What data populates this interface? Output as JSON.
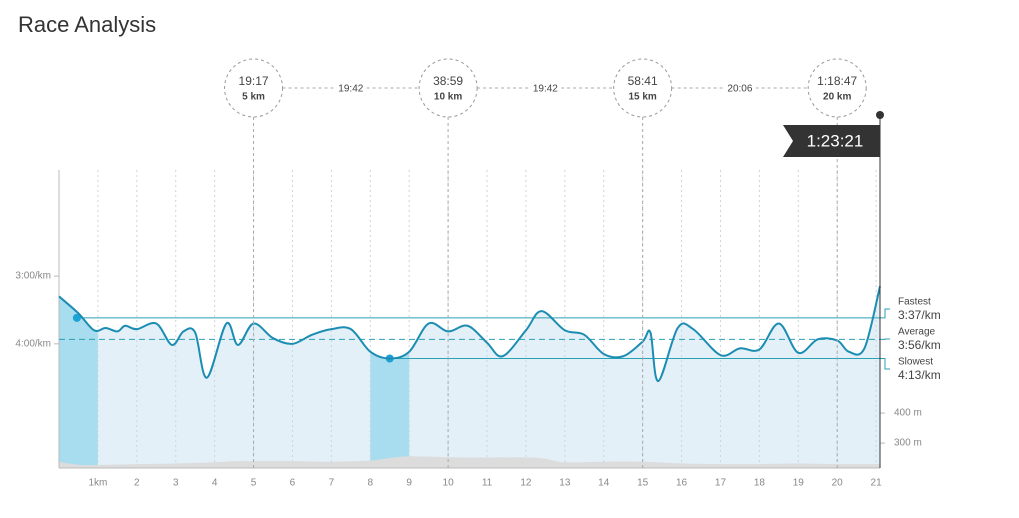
{
  "chart_data": {
    "type": "line",
    "title": "Race Analysis",
    "xlim": [
      0,
      21.1
    ],
    "xticks": [
      {
        "value": 1,
        "label": "1km"
      },
      2,
      3,
      4,
      5,
      6,
      7,
      8,
      9,
      10,
      11,
      12,
      13,
      14,
      15,
      16,
      17,
      18,
      19,
      20,
      21
    ],
    "ylim": [
      350,
      86
    ],
    "yticks": [
      {
        "value": 180,
        "label": "3:00/km"
      },
      {
        "value": 240,
        "label": "4:00/km"
      }
    ],
    "y2lim": [
      217,
      1210
    ],
    "y2ticks": [
      {
        "value": 300,
        "label": "300 m"
      },
      {
        "value": 400,
        "label": "400 m"
      }
    ],
    "series": [
      {
        "name": "Pace",
        "color": "#1b8db3",
        "x": [
          0,
          0.5,
          0.9,
          1.2,
          1.5,
          1.7,
          2,
          2.5,
          2.9,
          3.2,
          3.5,
          3.8,
          4.3,
          4.6,
          5,
          5.5,
          6,
          6.5,
          7,
          7.5,
          8,
          8.5,
          9,
          9.5,
          10,
          10.5,
          11,
          11.4,
          12,
          12.4,
          13,
          13.5,
          14,
          14.5,
          15,
          15.2,
          15.4,
          15.9,
          16.3,
          17,
          17.5,
          18,
          18.5,
          19,
          19.5,
          20,
          20.3,
          20.7,
          21.1
        ],
        "values": [
          198,
          213,
          228,
          226,
          229,
          224,
          227,
          222,
          241,
          229,
          230,
          270,
          222,
          241,
          222,
          235,
          240,
          232,
          227,
          227,
          247,
          253,
          247,
          222,
          229,
          224,
          239,
          251,
          228,
          211,
          228,
          232,
          249,
          251,
          238,
          230,
          273,
          226,
          227,
          250,
          244,
          245,
          222,
          248,
          236,
          237,
          247,
          244,
          189
        ]
      },
      {
        "name": "Elevation",
        "color": "#dcdcdc",
        "axis": "y2",
        "x": [
          0,
          0.5,
          1,
          2,
          3,
          4,
          4.5,
          5,
          6,
          7,
          8,
          8.5,
          9,
          10,
          11,
          12,
          12.5,
          13,
          14,
          15,
          16,
          17,
          18,
          19,
          20,
          21.1
        ],
        "values": [
          238,
          228,
          227,
          230,
          232,
          236,
          240,
          240,
          240,
          238,
          242,
          250,
          256,
          253,
          252,
          252,
          248,
          236,
          238,
          238,
          232,
          230,
          230,
          232,
          230,
          230
        ]
      }
    ],
    "highlight_bands": [
      [
        0,
        1
      ],
      [
        8,
        9
      ]
    ],
    "reference_lines": [
      {
        "name": "Fastest",
        "value": 217,
        "label": "3:37/km",
        "from_km": 0.46
      },
      {
        "name": "Average",
        "value": 236,
        "label": "3:56/km",
        "dashed": true,
        "from_km": 0
      },
      {
        "name": "Slowest",
        "value": 253,
        "label": "4:13/km",
        "from_km": 8.5
      }
    ],
    "splits": [
      {
        "time": "19:17",
        "distance": "5 km",
        "km": 5
      },
      {
        "time": "38:59",
        "distance": "10 km",
        "km": 10
      },
      {
        "time": "58:41",
        "distance": "15 km",
        "km": 15
      },
      {
        "time": "1:18:47",
        "distance": "20 km",
        "km": 20
      }
    ],
    "segments": [
      "19:42",
      "19:42",
      "20:06"
    ],
    "finish": {
      "time": "1:23:21",
      "km": 21.1
    }
  }
}
